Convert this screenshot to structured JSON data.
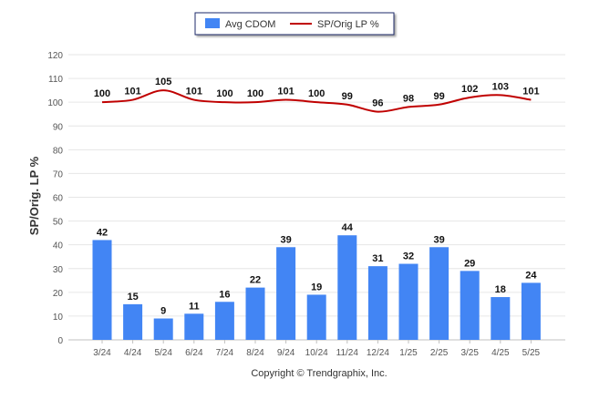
{
  "chart_data": {
    "type": "bar",
    "categories": [
      "3/24",
      "4/24",
      "5/24",
      "6/24",
      "7/24",
      "8/24",
      "9/24",
      "10/24",
      "11/24",
      "12/24",
      "1/25",
      "2/25",
      "3/25",
      "4/25",
      "5/25"
    ],
    "series": [
      {
        "name": "Avg CDOM",
        "type": "bar",
        "color": "#4285f4",
        "values": [
          42,
          15,
          9,
          11,
          16,
          22,
          39,
          19,
          44,
          31,
          32,
          39,
          29,
          18,
          24
        ]
      },
      {
        "name": "SP/Orig LP %",
        "type": "line",
        "color": "#c00000",
        "values": [
          100,
          101,
          105,
          101,
          100,
          100,
          101,
          100,
          99,
          96,
          98,
          99,
          102,
          103,
          101
        ]
      }
    ],
    "ylabel": "SP/Orig. LP %",
    "xlabel": "",
    "ylim": [
      0,
      120
    ],
    "yticks": [
      0,
      10,
      20,
      30,
      40,
      50,
      60,
      70,
      80,
      90,
      100,
      110,
      120
    ],
    "grid": true,
    "legend_position": "top-center"
  },
  "footer": {
    "copyright": "Copyright © Trendgraphix, Inc."
  }
}
